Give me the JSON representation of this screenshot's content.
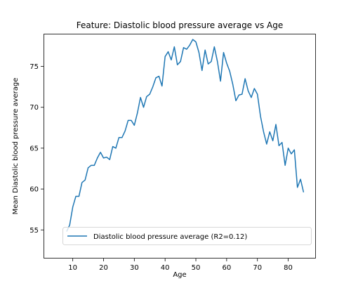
{
  "chart_data": {
    "type": "line",
    "title": "Feature: Diastolic blood pressure average vs Age",
    "xlabel": "Age",
    "ylabel": "Mean Diastolic blood pressure average",
    "xlim": [
      0.5,
      89
    ],
    "ylim": [
      51.5,
      79
    ],
    "x_ticks": [
      10,
      20,
      30,
      40,
      50,
      60,
      70,
      80
    ],
    "y_ticks": [
      55,
      60,
      65,
      70,
      75
    ],
    "grid": false,
    "legend_position": "lower center",
    "series": [
      {
        "name": "Diastolic blood pressure average (R2=0.12)",
        "color": "#1f77b4",
        "x": [
          8,
          9,
          10,
          11,
          12,
          13,
          14,
          15,
          16,
          17,
          18,
          19,
          20,
          21,
          22,
          23,
          24,
          25,
          26,
          27,
          28,
          29,
          30,
          31,
          32,
          33,
          34,
          35,
          36,
          37,
          38,
          39,
          40,
          41,
          42,
          43,
          44,
          45,
          46,
          47,
          48,
          49,
          50,
          51,
          52,
          53,
          54,
          55,
          56,
          57,
          58,
          59,
          60,
          61,
          62,
          63,
          64,
          65,
          66,
          67,
          68,
          69,
          70,
          71,
          72,
          73,
          74,
          75,
          76,
          77,
          78,
          79,
          80,
          81,
          82,
          83,
          84,
          85
        ],
        "y": [
          54.8,
          55.6,
          57.8,
          59.1,
          59.1,
          60.8,
          61.1,
          62.6,
          62.9,
          62.9,
          63.8,
          64.5,
          63.8,
          63.9,
          63.6,
          65.2,
          65.0,
          66.3,
          66.3,
          67.1,
          68.4,
          68.4,
          67.8,
          69.3,
          71.2,
          70.0,
          71.3,
          71.6,
          72.5,
          73.6,
          73.8,
          72.6,
          76.2,
          76.8,
          75.8,
          77.4,
          75.2,
          75.6,
          77.3,
          77.1,
          77.6,
          78.3,
          78.0,
          76.7,
          74.5,
          77.0,
          75.3,
          75.6,
          77.4,
          75.6,
          73.2,
          76.7,
          75.4,
          74.4,
          72.8,
          70.8,
          71.5,
          71.6,
          73.5,
          72.0,
          71.2,
          72.3,
          71.6,
          68.9,
          67.0,
          65.5,
          67.0,
          65.9,
          67.9,
          65.3,
          65.7,
          62.9,
          65.0,
          64.3,
          64.8,
          60.2,
          61.2,
          59.6
        ]
      }
    ]
  }
}
